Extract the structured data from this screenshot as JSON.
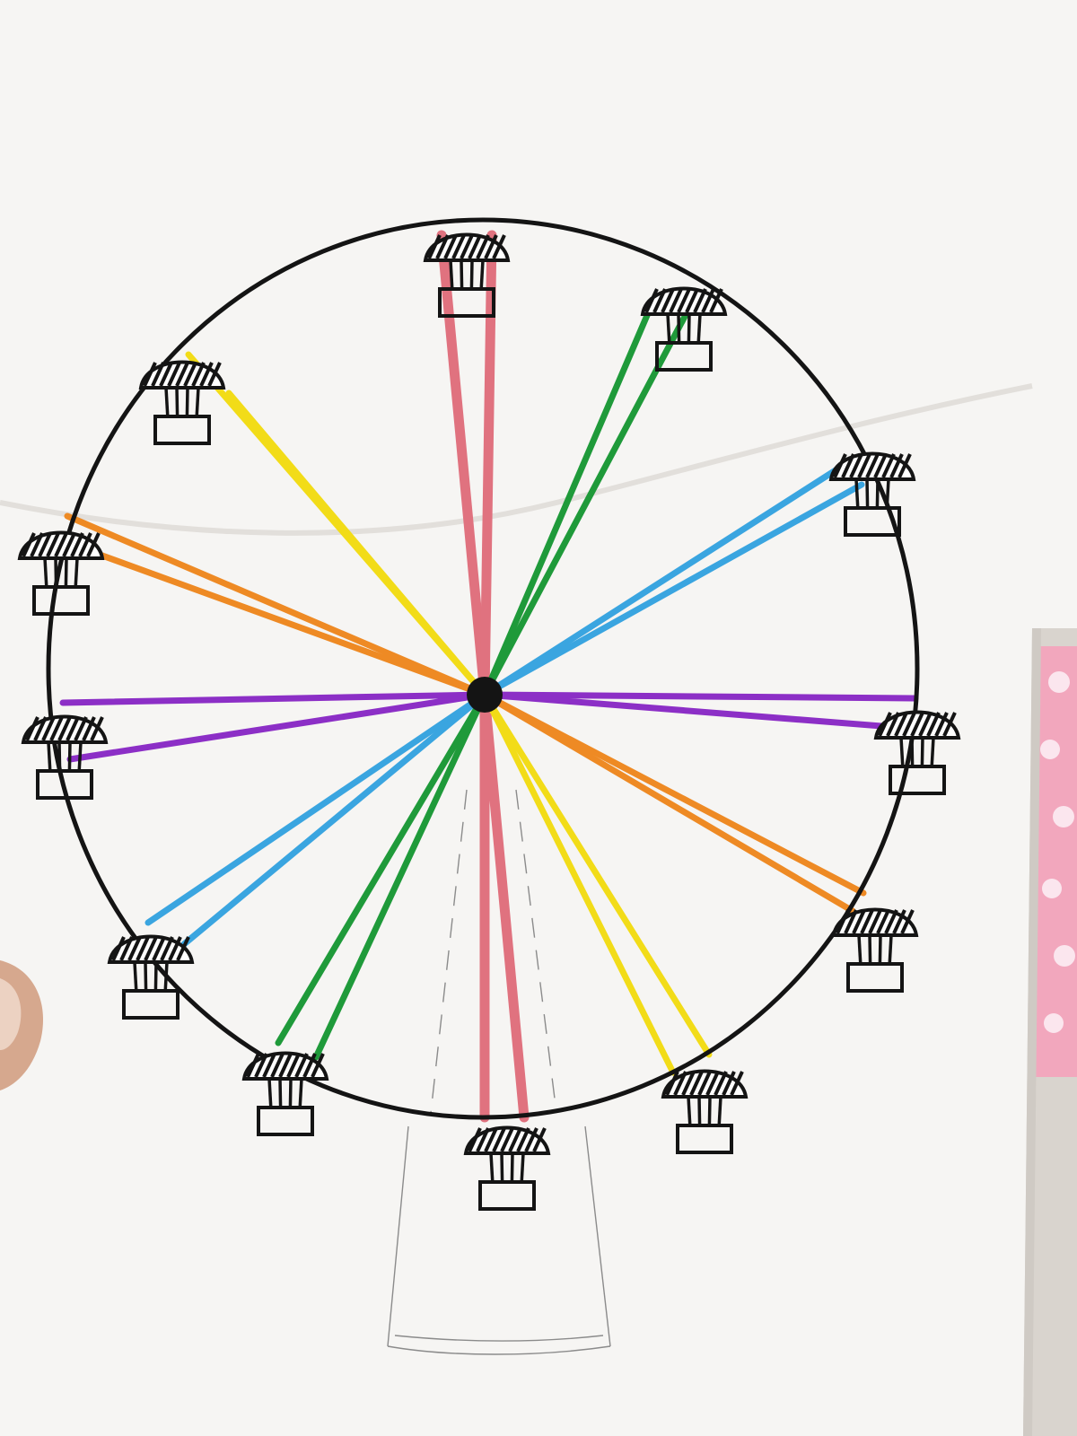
{
  "scene": {
    "subject": "ferris-wheel-drawing",
    "colors": {
      "paper": "#f6f5f3",
      "paper_shade": "#e4e2df",
      "backdrop": "#d9d4ce",
      "pink_cloth": "#f2a7bd",
      "pink_dot": "#fbe6ee",
      "thumb": "#d6a88e",
      "ink": "#141414",
      "pencil": "#8b8b8b"
    },
    "spokes": [
      {
        "name": "pink",
        "color": "#e0727f"
      },
      {
        "name": "green",
        "color": "#1f9a3a"
      },
      {
        "name": "blue",
        "color": "#3aa5e0"
      },
      {
        "name": "purple",
        "color": "#8c2fc6"
      },
      {
        "name": "orange",
        "color": "#ee8a24"
      },
      {
        "name": "yellow",
        "color": "#f2dc18"
      }
    ],
    "gondola_count": 12
  }
}
